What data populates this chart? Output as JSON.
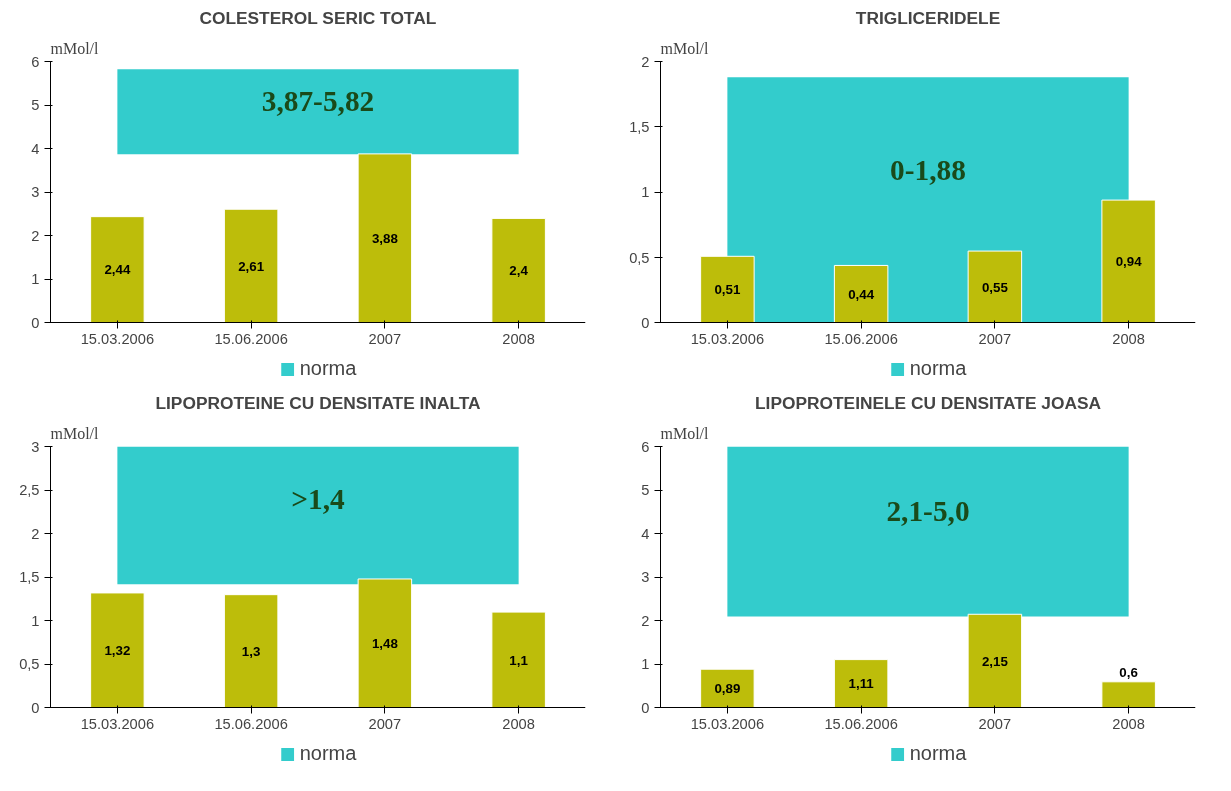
{
  "chart_data": [
    {
      "type": "bar",
      "title": "COLESTEROL SERIC TOTAL",
      "ylabel": "mMol/l",
      "categories": [
        "15.03.2006",
        "15.06.2006",
        "2007",
        "2008"
      ],
      "values": [
        2.44,
        2.61,
        3.88,
        2.4
      ],
      "value_labels": [
        "2,44",
        "2,61",
        "3,88",
        "2,4"
      ],
      "color": "#bdbd0a",
      "ylim": [
        0,
        6
      ],
      "yticks": [
        0,
        1,
        2,
        3,
        4,
        5,
        6
      ],
      "bands": [
        {
          "axis": "y",
          "from": 3.87,
          "to": 5.82,
          "label": "norma",
          "color": "#33cccc"
        }
      ],
      "annotations": [
        "3,87-5,82"
      ],
      "legend": "bottom",
      "grid": false
    },
    {
      "type": "bar",
      "title": "TRIGLICERIDELE",
      "ylabel": "mMol/l",
      "categories": [
        "15.03.2006",
        "15.06.2006",
        "2007",
        "2008"
      ],
      "values": [
        0.51,
        0.44,
        0.55,
        0.94
      ],
      "value_labels": [
        "0,51",
        "0,44",
        "0,55",
        "0,94"
      ],
      "color": "#bdbd0a",
      "ylim": [
        0,
        2
      ],
      "yticks": [
        0,
        {
          "value": 0.5,
          "label": "0,5"
        },
        1,
        {
          "value": 1.5,
          "label": "1,5"
        },
        2
      ],
      "bands": [
        {
          "axis": "y",
          "from": 0,
          "to": 1.88,
          "label": "norma",
          "color": "#33cccc"
        }
      ],
      "annotations": [
        "0-1,88"
      ],
      "legend": "bottom",
      "grid": false
    },
    {
      "type": "bar",
      "title": "LIPOPROTEINE CU DENSITATE INALTA",
      "ylabel": "mMol/l",
      "categories": [
        "15.03.2006",
        "15.06.2006",
        "2007",
        "2008"
      ],
      "values": [
        1.32,
        1.3,
        1.48,
        1.1
      ],
      "value_labels": [
        "1,32",
        "1,3",
        "1,48",
        "1,1"
      ],
      "color": "#bdbd0a",
      "ylim": [
        0,
        3
      ],
      "yticks": [
        0,
        {
          "value": 0.5,
          "label": "0,5"
        },
        1,
        {
          "value": 1.5,
          "label": "1,5"
        },
        2,
        {
          "value": 2.5,
          "label": "2,5"
        },
        3
      ],
      "bands": [
        {
          "axis": "y",
          "from": 1.42,
          "to": 3,
          "label": "norma",
          "color": "#33cccc"
        }
      ],
      "annotations": [
        ">1,4"
      ],
      "legend": "bottom",
      "grid": false
    },
    {
      "type": "bar",
      "title": "LIPOPROTEINELE CU DENSITATE JOASA",
      "ylabel": "mMol/l",
      "categories": [
        "15.03.2006",
        "15.06.2006",
        "2007",
        "2008"
      ],
      "values": [
        0.89,
        1.11,
        2.15,
        0.6
      ],
      "value_labels": [
        "0,89",
        "1,11",
        "2,15",
        "0,6"
      ],
      "color": "#bdbd0a",
      "ylim": [
        0,
        6
      ],
      "yticks": [
        0,
        1,
        2,
        3,
        4,
        5,
        6
      ],
      "bands": [
        {
          "axis": "y",
          "from": 2.1,
          "to": 6,
          "label": "norma",
          "color": "#33cccc"
        }
      ],
      "annotations": [
        "2,1-5,0"
      ],
      "legend": "bottom",
      "grid": false
    }
  ]
}
